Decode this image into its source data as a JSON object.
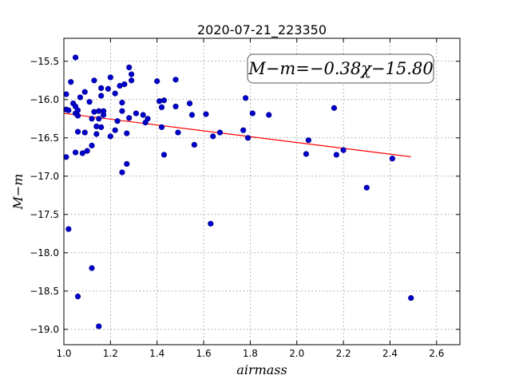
{
  "chart_data": {
    "type": "scatter",
    "title": "2020-07-21_223350",
    "xlabel": "airmass",
    "ylabel": "M−m",
    "xlim": [
      1.0,
      2.7
    ],
    "ylim": [
      -19.2,
      -15.2
    ],
    "y_inverted": true,
    "grid": true,
    "x_ticks": [
      1.0,
      1.2,
      1.4,
      1.6,
      1.8,
      2.0,
      2.2,
      2.4,
      2.6
    ],
    "x_tick_labels": [
      "1.0",
      "1.2",
      "1.4",
      "1.6",
      "1.8",
      "2.0",
      "2.2",
      "2.4",
      "2.6"
    ],
    "y_ticks": [
      -15.5,
      -16.0,
      -16.5,
      -17.0,
      -17.5,
      -18.0,
      -18.5,
      -19.0
    ],
    "y_tick_labels": [
      "−15.5",
      "−16.0",
      "−16.5",
      "−17.0",
      "−17.5",
      "−18.0",
      "−18.5",
      "−19.0"
    ],
    "annotation": "M−m=−0.38χ−15.80",
    "annotation_placement": "top-right",
    "point_color": "#0000cc",
    "fit_color": "#ff0000",
    "fit": {
      "slope": -0.38,
      "intercept": -15.8,
      "x_range": [
        1.0,
        2.49
      ]
    },
    "points": [
      [
        1.01,
        -15.93
      ],
      [
        1.01,
        -16.13
      ],
      [
        1.01,
        -16.75
      ],
      [
        1.02,
        -16.14
      ],
      [
        1.02,
        -17.69
      ],
      [
        1.03,
        -15.77
      ],
      [
        1.04,
        -16.05
      ],
      [
        1.05,
        -15.45
      ],
      [
        1.05,
        -16.09
      ],
      [
        1.05,
        -16.18
      ],
      [
        1.05,
        -16.69
      ],
      [
        1.06,
        -16.14
      ],
      [
        1.06,
        -16.42
      ],
      [
        1.06,
        -16.21
      ],
      [
        1.06,
        -18.57
      ],
      [
        1.07,
        -15.97
      ],
      [
        1.08,
        -16.7
      ],
      [
        1.09,
        -16.43
      ],
      [
        1.09,
        -15.9
      ],
      [
        1.1,
        -16.67
      ],
      [
        1.11,
        -16.03
      ],
      [
        1.12,
        -16.25
      ],
      [
        1.12,
        -16.6
      ],
      [
        1.12,
        -18.2
      ],
      [
        1.13,
        -16.16
      ],
      [
        1.13,
        -15.75
      ],
      [
        1.14,
        -16.35
      ],
      [
        1.14,
        -16.45
      ],
      [
        1.15,
        -18.96
      ],
      [
        1.15,
        -16.25
      ],
      [
        1.15,
        -16.15
      ],
      [
        1.16,
        -15.95
      ],
      [
        1.16,
        -16.36
      ],
      [
        1.16,
        -15.85
      ],
      [
        1.17,
        -16.2
      ],
      [
        1.17,
        -16.15
      ],
      [
        1.19,
        -15.86
      ],
      [
        1.2,
        -16.48
      ],
      [
        1.2,
        -15.71
      ],
      [
        1.22,
        -16.4
      ],
      [
        1.22,
        -15.92
      ],
      [
        1.23,
        -16.28
      ],
      [
        1.24,
        -15.82
      ],
      [
        1.25,
        -16.04
      ],
      [
        1.25,
        -16.15
      ],
      [
        1.25,
        -16.95
      ],
      [
        1.26,
        -15.8
      ],
      [
        1.27,
        -16.84
      ],
      [
        1.27,
        -16.44
      ],
      [
        1.28,
        -16.24
      ],
      [
        1.28,
        -15.58
      ],
      [
        1.29,
        -15.75
      ],
      [
        1.29,
        -15.67
      ],
      [
        1.31,
        -16.18
      ],
      [
        1.34,
        -16.2
      ],
      [
        1.35,
        -16.3
      ],
      [
        1.36,
        -16.25
      ],
      [
        1.4,
        -15.76
      ],
      [
        1.41,
        -16.02
      ],
      [
        1.42,
        -16.36
      ],
      [
        1.42,
        -16.1
      ],
      [
        1.43,
        -16.01
      ],
      [
        1.43,
        -16.72
      ],
      [
        1.48,
        -16.09
      ],
      [
        1.48,
        -15.74
      ],
      [
        1.49,
        -16.43
      ],
      [
        1.54,
        -16.05
      ],
      [
        1.55,
        -16.2
      ],
      [
        1.56,
        -16.59
      ],
      [
        1.61,
        -16.19
      ],
      [
        1.63,
        -17.62
      ],
      [
        1.64,
        -16.48
      ],
      [
        1.67,
        -16.43
      ],
      [
        1.77,
        -16.4
      ],
      [
        1.78,
        -15.98
      ],
      [
        1.79,
        -16.5
      ],
      [
        1.81,
        -16.18
      ],
      [
        1.88,
        -16.2
      ],
      [
        2.04,
        -16.71
      ],
      [
        2.05,
        -16.53
      ],
      [
        2.16,
        -16.11
      ],
      [
        2.17,
        -16.72
      ],
      [
        2.2,
        -16.66
      ],
      [
        2.3,
        -17.15
      ],
      [
        2.41,
        -16.77
      ],
      [
        2.49,
        -18.59
      ]
    ]
  }
}
